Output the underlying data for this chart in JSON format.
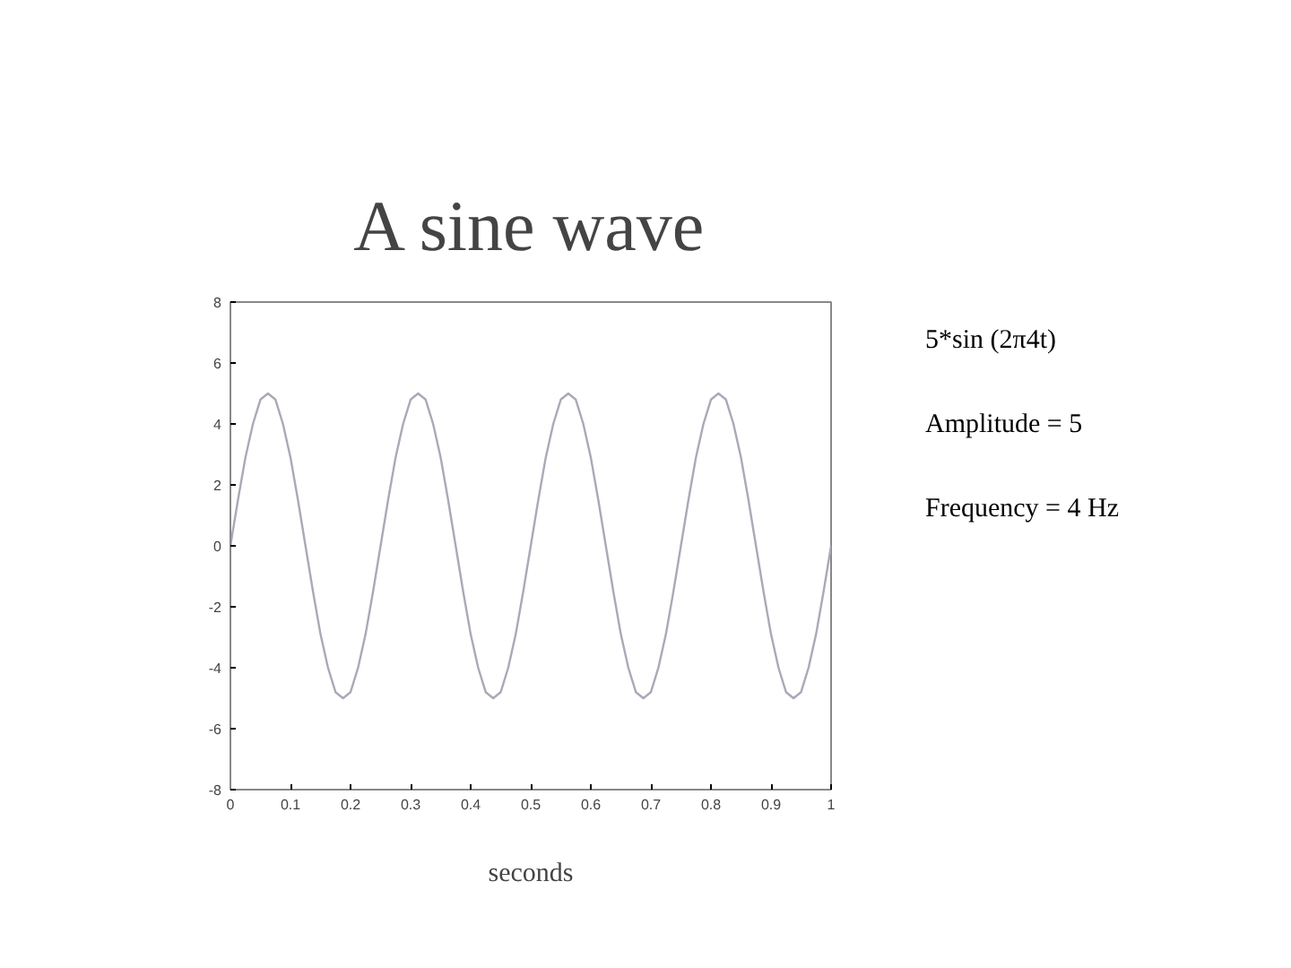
{
  "chart_data": {
    "type": "line",
    "title": "A sine wave",
    "xlabel": "seconds",
    "annotations": [
      "5*sin (2π4t)",
      "Amplitude = 5",
      "Frequency = 4 Hz"
    ],
    "x": [
      0,
      0.0125,
      0.025,
      0.0375,
      0.05,
      0.0625,
      0.075,
      0.0875,
      0.1,
      0.1125,
      0.125,
      0.1375,
      0.15,
      0.1625,
      0.175,
      0.1875,
      0.2,
      0.2125,
      0.225,
      0.2375,
      0.25,
      0.2625,
      0.275,
      0.2875,
      0.3,
      0.3125,
      0.325,
      0.3375,
      0.35,
      0.3625,
      0.375,
      0.3875,
      0.4,
      0.4125,
      0.425,
      0.4375,
      0.45,
      0.4625,
      0.475,
      0.4875,
      0.5,
      0.5125,
      0.525,
      0.5375,
      0.55,
      0.5625,
      0.575,
      0.5875,
      0.6,
      0.6125,
      0.625,
      0.6375,
      0.65,
      0.6625,
      0.675,
      0.6875,
      0.7,
      0.7125,
      0.725,
      0.7375,
      0.75,
      0.7625,
      0.775,
      0.7875,
      0.8,
      0.8125,
      0.825,
      0.8375,
      0.85,
      0.8625,
      0.875,
      0.8875,
      0.9,
      0.9125,
      0.925,
      0.9375,
      0.95,
      0.9625,
      0.975,
      0.9875,
      1
    ],
    "series": [
      {
        "color": "#a9a9b8",
        "values": [
          0,
          1.5,
          2.9,
          4.0,
          4.8,
          5,
          4.8,
          4.0,
          2.9,
          1.5,
          0,
          -1.5,
          -2.9,
          -4.0,
          -4.8,
          -5,
          -4.8,
          -4.0,
          -2.9,
          -1.5,
          0,
          1.5,
          2.9,
          4.0,
          4.8,
          5,
          4.8,
          4.0,
          2.9,
          1.5,
          0,
          -1.5,
          -2.9,
          -4.0,
          -4.8,
          -5,
          -4.8,
          -4.0,
          -2.9,
          -1.5,
          0,
          1.5,
          2.9,
          4.0,
          4.8,
          5,
          4.8,
          4.0,
          2.9,
          1.5,
          0,
          -1.5,
          -2.9,
          -4.0,
          -4.8,
          -5,
          -4.8,
          -4.0,
          -2.9,
          -1.5,
          0,
          1.5,
          2.9,
          4.0,
          4.8,
          5,
          4.8,
          4.0,
          2.9,
          1.5,
          0,
          -1.5,
          -2.9,
          -4.0,
          -4.8,
          -5,
          -4.8,
          -4.0,
          -2.9,
          -1.5,
          0
        ]
      }
    ],
    "xlim": [
      0,
      1
    ],
    "ylim": [
      -8,
      8
    ],
    "xticks": [
      0,
      0.1,
      0.2,
      0.3,
      0.4,
      0.5,
      0.6,
      0.7,
      0.8,
      0.9,
      1
    ],
    "yticks": [
      -8,
      -6,
      -4,
      -2,
      0,
      2,
      4,
      6,
      8
    ],
    "grid": false,
    "line_style": "solid"
  }
}
